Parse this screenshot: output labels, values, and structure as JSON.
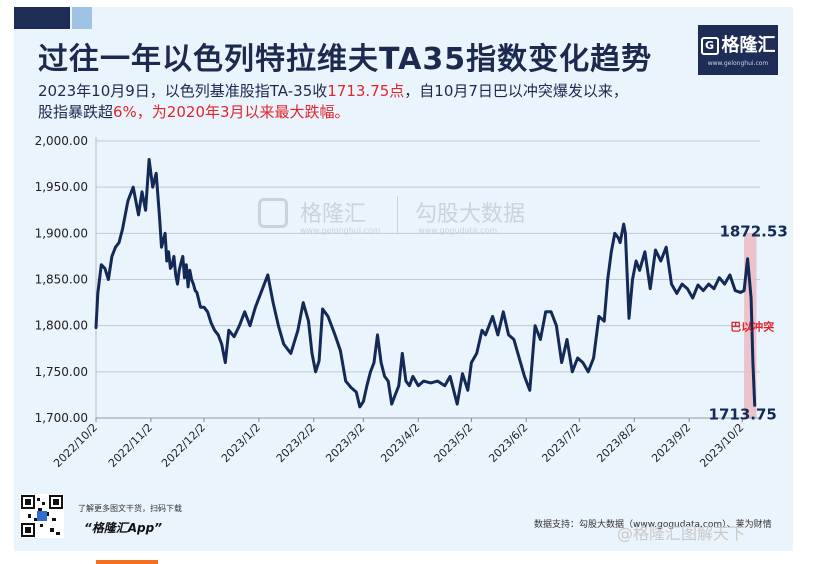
{
  "header": {
    "title": "过往一年以色列特拉维夫TA35指数变化趋势",
    "line1_prefix": "2023年10月9日，以色列基准股指TA-35收",
    "line1_highlight": "1713.75点",
    "line1_suffix": "，自10月7日巴以冲突爆发以来，",
    "line2_prefix": "股指暴跌超",
    "line2_highlight": "6%，为2020年3月以来最大跌幅。",
    "line2_suffix": ""
  },
  "logo": {
    "name": "格隆汇",
    "url": "www.gelonghui.com"
  },
  "watermark": {
    "brand1": "格隆汇",
    "brand1_url": "www.gelonghui.com",
    "brand2": "勾股大数据",
    "brand2_url": "www.gogudata.com"
  },
  "footer": {
    "qr_caption": "了解更多图文干货，扫码下载",
    "app_name": "“格隆汇App”",
    "source": "数据支持：勾股大数据（www.gogudata.com）、莱为财情",
    "weibo_watermark": "@格隆汇图解天下"
  },
  "colors": {
    "line": "#132a57",
    "highlight_band": "#ecb6be",
    "annotation_red": "#e0262c",
    "grid": "#c2c9d3",
    "background": "#eaf4fc",
    "brand_navy": "#1d2d55"
  },
  "chart_data": {
    "type": "line",
    "title": "过往一年以色列特拉维夫TA35指数变化趋势",
    "xlabel": "",
    "ylabel": "",
    "ylim": [
      1700,
      2000
    ],
    "xlim": [
      "2022-10-02",
      "2023-10-12"
    ],
    "yticks": [
      1700,
      1750,
      1800,
      1850,
      1900,
      1950,
      2000
    ],
    "ytick_labels": [
      "1,700.00",
      "1,750.00",
      "1,800.00",
      "1,850.00",
      "1,900.00",
      "1,950.00",
      "2,000.00"
    ],
    "xticks": [
      "2022-10-02",
      "2022-11-02",
      "2022-12-02",
      "2023-01-02",
      "2023-02-02",
      "2023-03-02",
      "2023-04-02",
      "2023-05-02",
      "2023-06-02",
      "2023-07-02",
      "2023-08-02",
      "2023-09-02",
      "2023-10-02"
    ],
    "xtick_labels": [
      "2022/10/2",
      "2022/11/2",
      "2022/12/2",
      "2023/1/2",
      "2023/2/2",
      "2023/3/2",
      "2023/4/2",
      "2023/5/2",
      "2023/6/2",
      "2023/7/2",
      "2023/8/2",
      "2023/9/2",
      "2023/10/2"
    ],
    "grid": true,
    "highlight_band": {
      "from": "2023-10-03",
      "to": "2023-10-10",
      "label": "巴以冲突"
    },
    "annotations": [
      {
        "text": "1872.53",
        "x": "2023-10-05",
        "y": 1872.53
      },
      {
        "text": "1713.75",
        "x": "2023-10-09",
        "y": 1713.75
      }
    ],
    "series": [
      {
        "x": [
          "2022-10-02",
          "2022-10-03",
          "2022-10-05",
          "2022-10-07",
          "2022-10-09",
          "2022-10-11",
          "2022-10-13",
          "2022-10-15",
          "2022-10-17",
          "2022-10-20",
          "2022-10-23",
          "2022-10-26",
          "2022-10-28",
          "2022-10-30",
          "2022-11-01",
          "2022-11-03",
          "2022-11-05",
          "2022-11-07",
          "2022-11-08",
          "2022-11-10",
          "2022-11-11",
          "2022-11-12",
          "2022-11-13",
          "2022-11-14",
          "2022-11-15",
          "2022-11-16",
          "2022-11-17",
          "2022-11-18",
          "2022-11-19",
          "2022-11-20",
          "2022-11-21",
          "2022-11-22",
          "2022-11-23",
          "2022-11-24",
          "2022-11-25",
          "2022-11-26",
          "2022-11-27",
          "2022-11-28",
          "2022-11-30",
          "2022-12-02",
          "2022-12-04",
          "2022-12-06",
          "2022-12-08",
          "2022-12-10",
          "2022-12-12",
          "2022-12-14",
          "2022-12-16",
          "2022-12-19",
          "2022-12-22",
          "2022-12-25",
          "2022-12-28",
          "2022-12-31",
          "2023-01-03",
          "2023-01-07",
          "2023-01-10",
          "2023-01-13",
          "2023-01-16",
          "2023-01-20",
          "2023-01-24",
          "2023-01-27",
          "2023-01-30",
          "2023-02-01",
          "2023-02-03",
          "2023-02-05",
          "2023-02-07",
          "2023-02-10",
          "2023-02-14",
          "2023-02-17",
          "2023-02-20",
          "2023-02-23",
          "2023-02-26",
          "2023-02-28",
          "2023-03-02",
          "2023-03-04",
          "2023-03-06",
          "2023-03-08",
          "2023-03-10",
          "2023-03-12",
          "2023-03-14",
          "2023-03-16",
          "2023-03-18",
          "2023-03-20",
          "2023-03-22",
          "2023-03-24",
          "2023-03-26",
          "2023-03-28",
          "2023-03-30",
          "2023-04-02",
          "2023-04-05",
          "2023-04-09",
          "2023-04-13",
          "2023-04-17",
          "2023-04-20",
          "2023-04-24",
          "2023-04-27",
          "2023-04-30",
          "2023-05-02",
          "2023-05-05",
          "2023-05-08",
          "2023-05-10",
          "2023-05-12",
          "2023-05-14",
          "2023-05-17",
          "2023-05-20",
          "2023-05-23",
          "2023-05-26",
          "2023-05-29",
          "2023-06-01",
          "2023-06-04",
          "2023-06-07",
          "2023-06-10",
          "2023-06-13",
          "2023-06-16",
          "2023-06-19",
          "2023-06-22",
          "2023-06-25",
          "2023-06-28",
          "2023-07-01",
          "2023-07-04",
          "2023-07-07",
          "2023-07-10",
          "2023-07-13",
          "2023-07-16",
          "2023-07-18",
          "2023-07-20",
          "2023-07-22",
          "2023-07-24",
          "2023-07-25",
          "2023-07-27",
          "2023-07-28",
          "2023-07-30",
          "2023-08-01",
          "2023-08-03",
          "2023-08-05",
          "2023-08-08",
          "2023-08-11",
          "2023-08-14",
          "2023-08-17",
          "2023-08-20",
          "2023-08-23",
          "2023-08-26",
          "2023-08-29",
          "2023-09-01",
          "2023-09-04",
          "2023-09-07",
          "2023-09-10",
          "2023-09-13",
          "2023-09-16",
          "2023-09-19",
          "2023-09-22",
          "2023-09-25",
          "2023-09-28",
          "2023-10-01",
          "2023-10-03",
          "2023-10-05",
          "2023-10-07",
          "2023-10-08",
          "2023-10-09"
        ],
        "values": [
          1798,
          1835,
          1866,
          1862,
          1850,
          1875,
          1885,
          1890,
          1905,
          1935,
          1950,
          1920,
          1945,
          1925,
          1980,
          1950,
          1965,
          1915,
          1885,
          1900,
          1870,
          1880,
          1862,
          1865,
          1875,
          1855,
          1845,
          1860,
          1868,
          1875,
          1852,
          1866,
          1842,
          1860,
          1850,
          1845,
          1838,
          1836,
          1820,
          1820,
          1815,
          1803,
          1795,
          1790,
          1780,
          1760,
          1795,
          1788,
          1800,
          1815,
          1800,
          1820,
          1835,
          1855,
          1825,
          1800,
          1780,
          1770,
          1795,
          1825,
          1805,
          1770,
          1750,
          1762,
          1818,
          1810,
          1790,
          1773,
          1740,
          1733,
          1728,
          1712,
          1718,
          1735,
          1750,
          1760,
          1790,
          1760,
          1745,
          1740,
          1715,
          1725,
          1735,
          1770,
          1740,
          1735,
          1745,
          1735,
          1740,
          1738,
          1740,
          1735,
          1745,
          1715,
          1748,
          1730,
          1760,
          1770,
          1795,
          1790,
          1800,
          1810,
          1790,
          1815,
          1790,
          1785,
          1765,
          1745,
          1730,
          1800,
          1785,
          1815,
          1815,
          1800,
          1760,
          1785,
          1750,
          1765,
          1760,
          1750,
          1765,
          1810,
          1805,
          1850,
          1880,
          1900,
          1895,
          1890,
          1910,
          1900,
          1808,
          1850,
          1870,
          1860,
          1880,
          1840,
          1882,
          1870,
          1885,
          1845,
          1835,
          1845,
          1840,
          1830,
          1844,
          1838,
          1845,
          1840,
          1852,
          1845,
          1855,
          1838,
          1836,
          1838,
          1872.53,
          1830,
          1760,
          1713.75
        ]
      }
    ]
  }
}
